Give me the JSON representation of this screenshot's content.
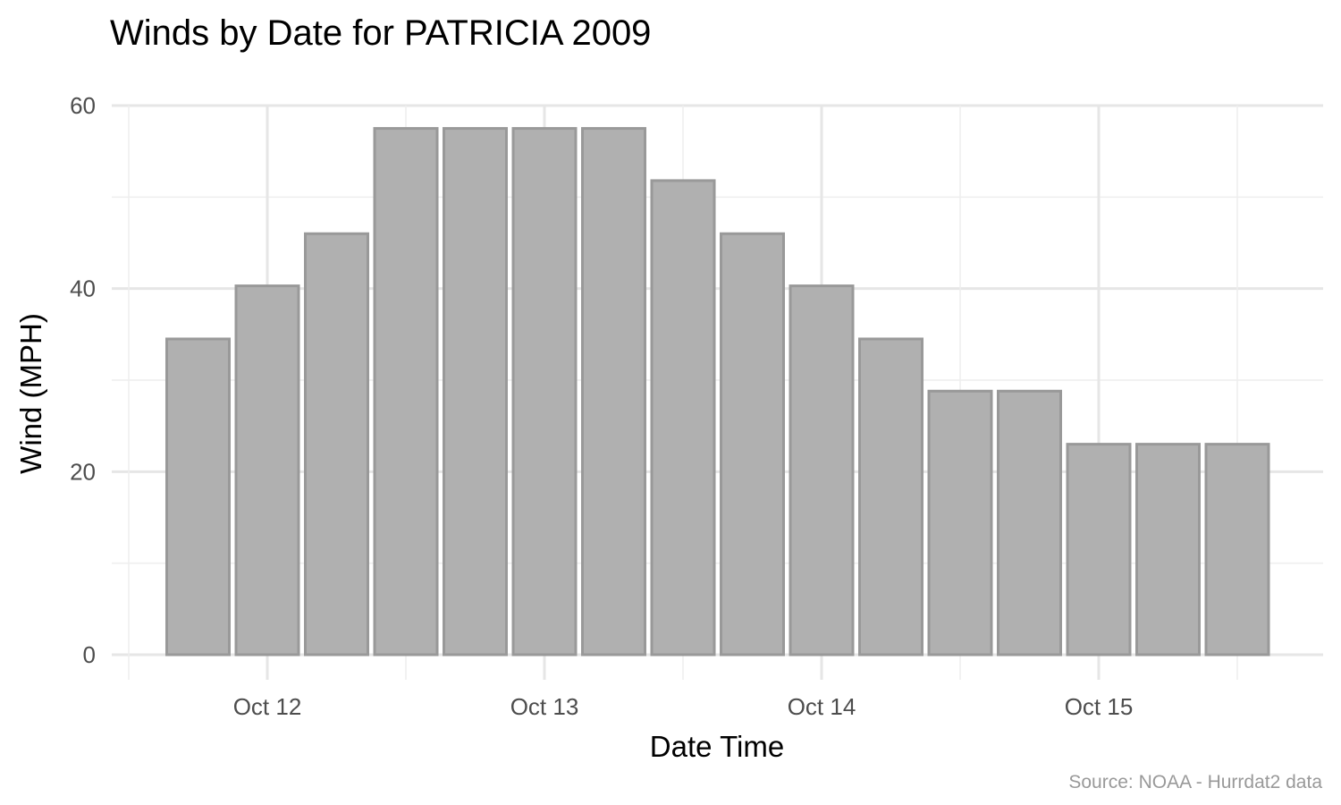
{
  "colors": {
    "bar_fill": "#b0b0b0",
    "bar_stroke": "#999999",
    "grid_major": "#e6e6e6",
    "grid_minor": "#eeeeee",
    "text": "#000000",
    "tick_text": "#4d4d4d",
    "caption": "#999999"
  },
  "chart_data": {
    "type": "bar",
    "title": "Winds by Date for PATRICIA 2009",
    "xlabel": "Date Time",
    "ylabel": "Wind (MPH)",
    "caption": "Source: NOAA - Hurrdat2 data",
    "x_ticks": [
      "Oct 12",
      "Oct 13",
      "Oct 14",
      "Oct 15"
    ],
    "y_ticks": [
      "0",
      "20",
      "40",
      "60"
    ],
    "ylim": [
      0,
      60
    ],
    "grid": true,
    "bars": [
      {
        "x": "2009-10-11 18:00",
        "y": 34.5
      },
      {
        "x": "2009-10-12 00:00",
        "y": 40.3
      },
      {
        "x": "2009-10-12 06:00",
        "y": 46
      },
      {
        "x": "2009-10-12 12:00",
        "y": 57.5
      },
      {
        "x": "2009-10-12 18:00",
        "y": 57.5
      },
      {
        "x": "2009-10-13 00:00",
        "y": 57.5
      },
      {
        "x": "2009-10-13 06:00",
        "y": 57.5
      },
      {
        "x": "2009-10-13 12:00",
        "y": 51.8
      },
      {
        "x": "2009-10-13 18:00",
        "y": 46
      },
      {
        "x": "2009-10-14 00:00",
        "y": 40.3
      },
      {
        "x": "2009-10-14 06:00",
        "y": 34.5
      },
      {
        "x": "2009-10-14 12:00",
        "y": 28.8
      },
      {
        "x": "2009-10-14 18:00",
        "y": 28.8
      },
      {
        "x": "2009-10-15 00:00",
        "y": 23
      },
      {
        "x": "2009-10-15 06:00",
        "y": 23
      },
      {
        "x": "2009-10-15 12:00",
        "y": 23
      }
    ]
  }
}
